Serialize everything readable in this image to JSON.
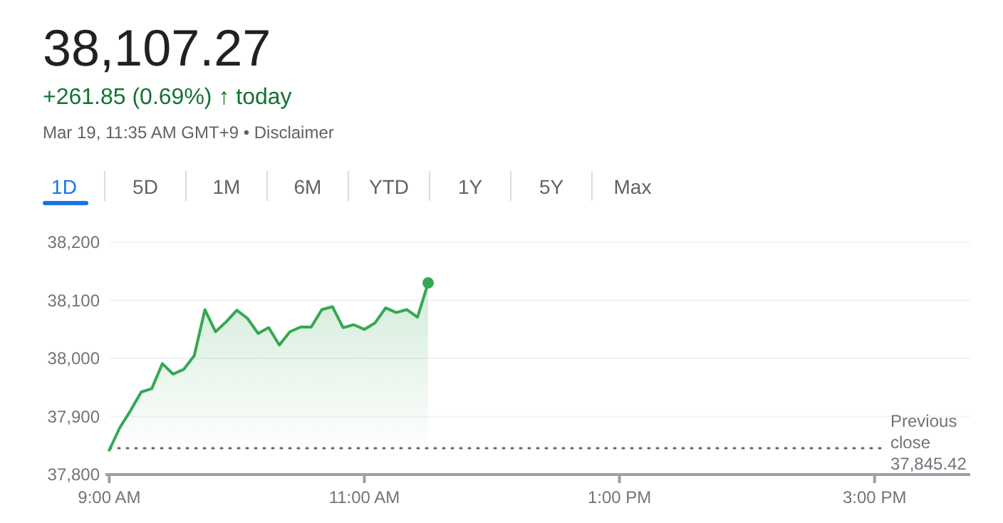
{
  "chart_data": {
    "type": "area",
    "title": "38,107.27",
    "subtitle": "+261.85 (0.69%) ↑ today",
    "annotations": [
      "Mar 19, 11:35 AM GMT+9 • Disclaimer",
      "1D",
      "5D",
      "1M",
      "6M",
      "YTD",
      "1Y",
      "5Y",
      "Max"
    ],
    "x": [
      9,
      9.0833,
      9.1667,
      9.25,
      9.3333,
      9.4167,
      9.5,
      9.5833,
      9.6667,
      9.75,
      9.8333,
      9.9167,
      10,
      10.0833,
      10.1667,
      10.25,
      10.3333,
      10.4167,
      10.5,
      10.5833,
      10.6667,
      10.75,
      10.8333,
      10.9167,
      11,
      11.0833,
      11.1667,
      11.25,
      11.3333,
      11.4167,
      11.5
    ],
    "series": [
      {
        "color": "#34a853",
        "values": [
          37842,
          37881,
          37910,
          37942,
          37948,
          37991,
          37973,
          37981,
          38005,
          38084,
          38046,
          38063,
          38083,
          38069,
          38043,
          38053,
          38023,
          38046,
          38054,
          38054,
          38084,
          38089,
          38053,
          38058,
          38050,
          38061,
          38087,
          38079,
          38084,
          38071,
          38130
        ]
      }
    ],
    "xlim": [
      8.97,
      15.75
    ],
    "xticks": [
      {
        "value": 9,
        "label": "9:00 AM"
      },
      {
        "value": 11,
        "label": "11:00 AM"
      },
      {
        "value": 13,
        "label": "1:00 PM"
      },
      {
        "value": 15,
        "label": "3:00 PM"
      }
    ],
    "ylim": [
      37800,
      38200
    ],
    "yticks": [
      {
        "value": 37800,
        "label": "37,800"
      },
      {
        "value": 37900,
        "label": "37,900"
      },
      {
        "value": 38000,
        "label": "38,000"
      },
      {
        "value": 38100,
        "label": "38,100"
      },
      {
        "value": 38200,
        "label": "38,200"
      }
    ],
    "grid": "y",
    "line_style": "solid",
    "ref_lines": [
      {
        "axis": "y",
        "value": 37845.42,
        "label": "Previous close 37,845.42",
        "color": "#5f6368",
        "line_style": "dotted"
      }
    ]
  }
}
